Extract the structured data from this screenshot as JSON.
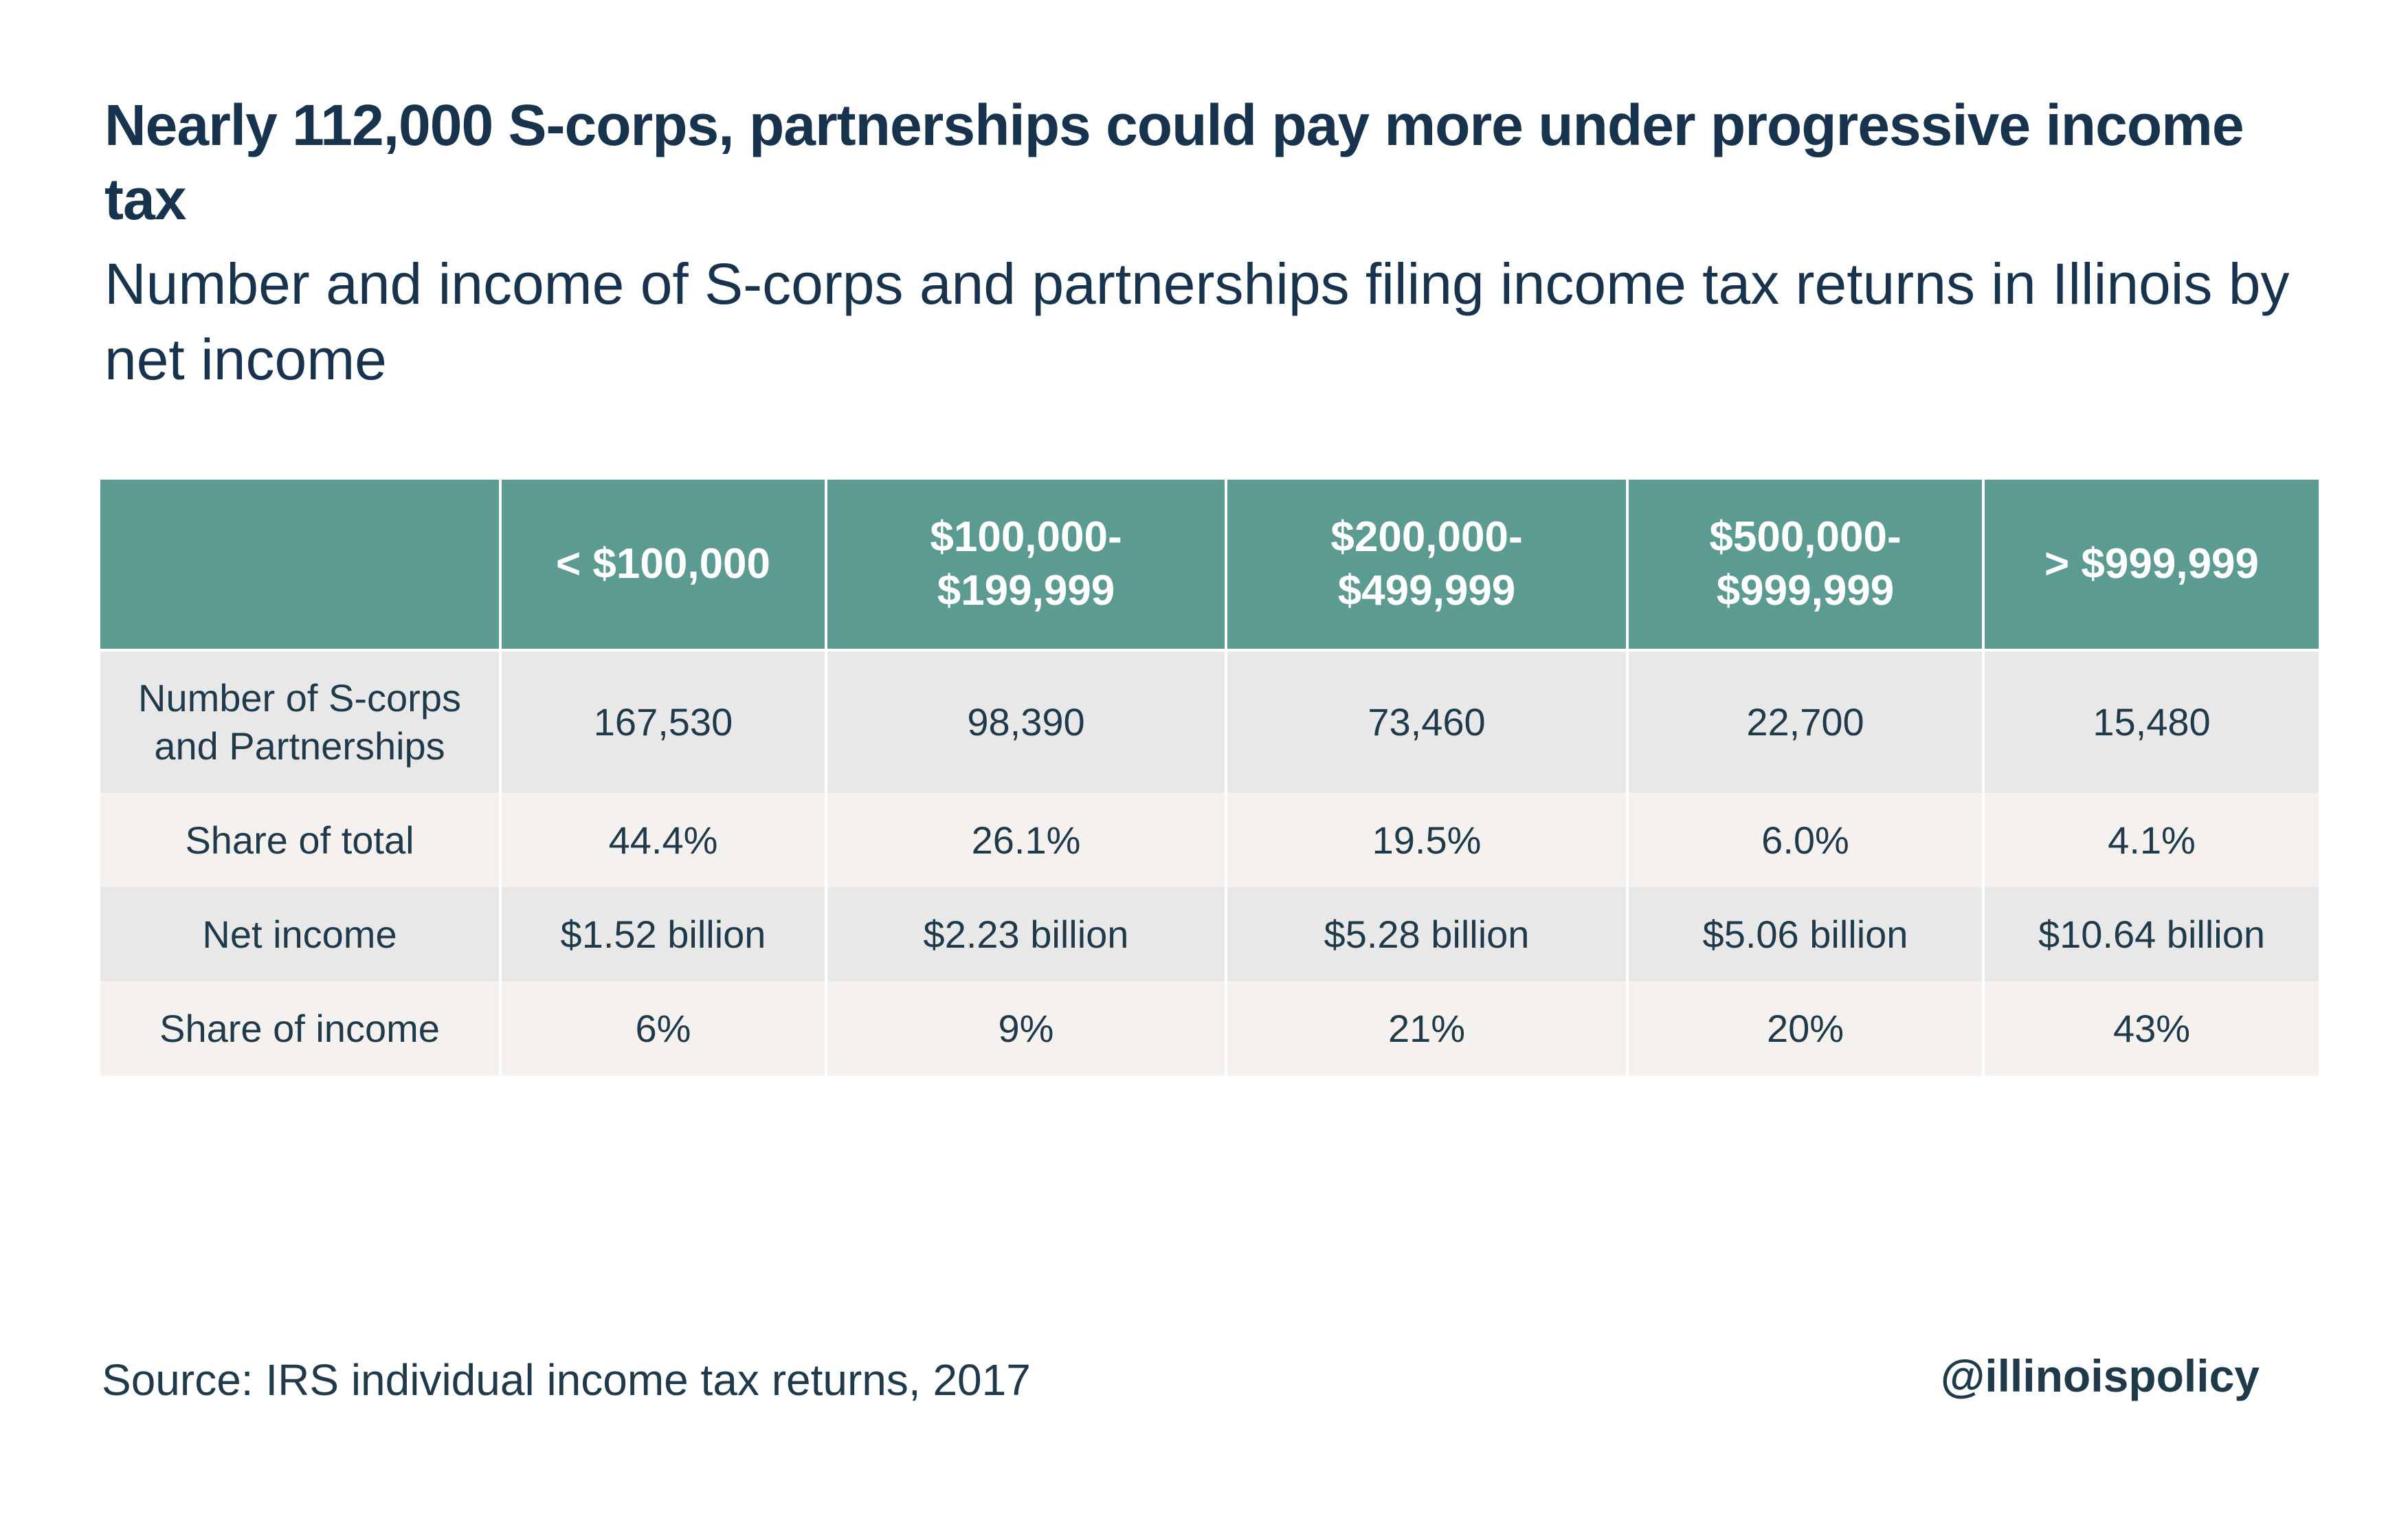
{
  "chart_data": {
    "type": "table",
    "title": "Nearly 112,000 S-corps, partnerships could pay more under progressive income tax",
    "subtitle": "Number and income of S-corps and partnerships filing income tax returns in Illinois by net income",
    "columns": [
      "",
      "< $100,000",
      "$100,000-\n$199,999",
      "$200,000-\n$499,999",
      "$500,000-\n$999,999",
      "> $999,999"
    ],
    "rows": [
      {
        "label": "Number of S-corps\nand Partnerships",
        "values": [
          "167,530",
          "98,390",
          "73,460",
          "22,700",
          "15,480"
        ]
      },
      {
        "label": "Share of total",
        "values": [
          "44.4%",
          "26.1%",
          "19.5%",
          "6.0%",
          "4.1%"
        ]
      },
      {
        "label": "Net income",
        "values": [
          "$1.52 billion",
          "$2.23 billion",
          "$5.28 billion",
          "$5.06 billion",
          "$10.64 billion"
        ]
      },
      {
        "label": "Share of income",
        "values": [
          "6%",
          "9%",
          "21%",
          "20%",
          "43%"
        ]
      }
    ]
  },
  "footer": {
    "source": "Source: IRS individual income tax returns, 2017",
    "handle": "@illinoispolicy"
  },
  "colors": {
    "header_bg": "#5c9b92",
    "row_gray": "#e9e8e9",
    "row_cream": "#f5f1ee",
    "title_text": "#17334d"
  }
}
